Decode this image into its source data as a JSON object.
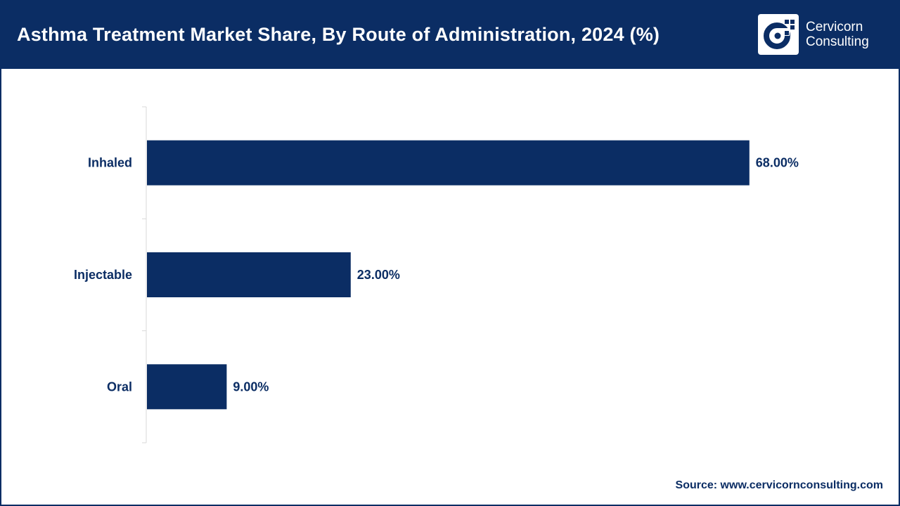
{
  "chart_data": {
    "type": "bar",
    "orientation": "horizontal",
    "title": "Asthma Treatment Market Share, By Route of Administration, 2024 (%)",
    "categories": [
      "Inhaled",
      "Injectable",
      "Oral"
    ],
    "values": [
      68.0,
      23.0,
      9.0
    ],
    "value_labels": [
      "68.00%",
      "23.00%",
      "9.00%"
    ],
    "xlabel": "",
    "ylabel": "",
    "xlim": [
      0,
      80
    ],
    "grid": false,
    "legend": "none"
  },
  "brand": {
    "name_line1": "Cervicorn",
    "name_line2": "Consulting"
  },
  "source_text": "Source: www.cervicornconsulting.com",
  "colors": {
    "header": "#0b2d64",
    "bar": "#0b2d64",
    "axis": "#d9d9d9",
    "text": "#0b2d64",
    "logo_mark": "#ffffff"
  },
  "icons": {
    "logo": "cervicorn-c-logo-icon"
  }
}
